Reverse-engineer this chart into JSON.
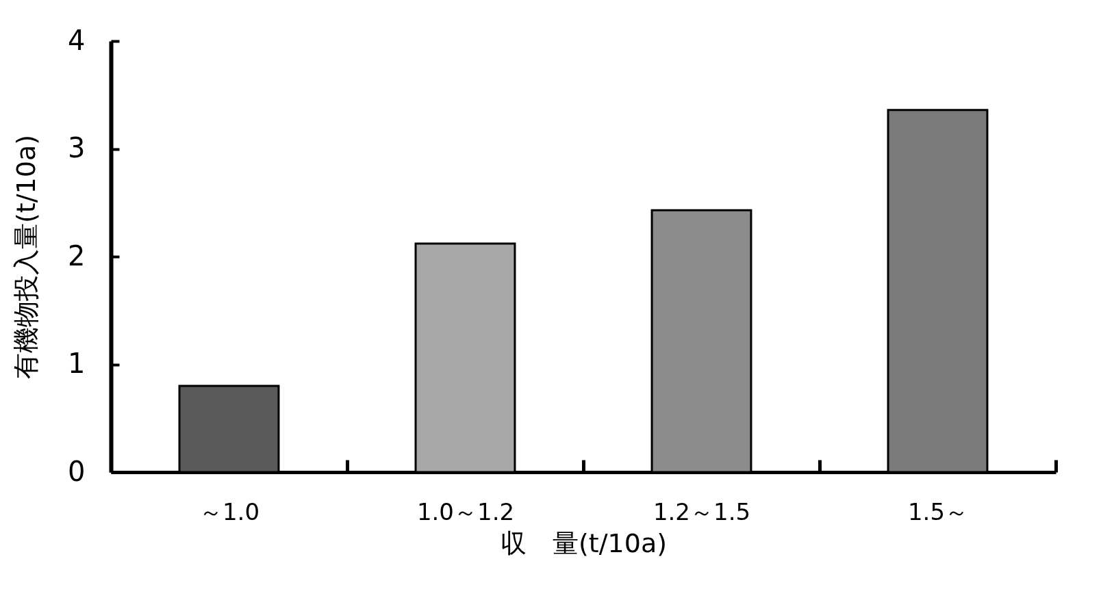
{
  "chart_data": {
    "type": "bar",
    "xlabel": "収　量(t/10a)",
    "ylabel": "有機物投入量(t/10a)",
    "categories": [
      "～1.0",
      "1.0～1.2",
      "1.2～1.5",
      "1.5～"
    ],
    "values": [
      0.8,
      2.12,
      2.43,
      3.36
    ],
    "colors": [
      "#5a5a5a",
      "#a8a8a8",
      "#8c8c8c",
      "#7a7a7a"
    ],
    "ylim": [
      0,
      4
    ],
    "yticks": [
      0,
      1,
      2,
      3,
      4
    ],
    "grid": false
  }
}
